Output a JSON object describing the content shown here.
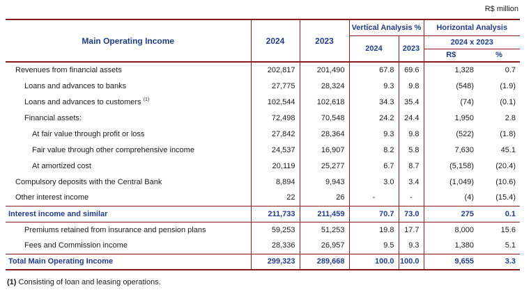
{
  "unit_label": "R$ million",
  "header": {
    "title": "Main Operating Income",
    "year1": "2024",
    "year2": "2023",
    "vertical": "Vertical Analysis %",
    "horizontal": "Horizontal Analysis",
    "va_year1": "2024",
    "va_year2": "2023",
    "comparison": "2024 x 2023",
    "rs": "R$",
    "pct": "%"
  },
  "rows": [
    {
      "label": "Revenues from financial assets",
      "sup": "",
      "y2024": "202,817",
      "y2023": "201,490",
      "va2024": "67.8",
      "va2023": "69.6",
      "ha_rs": "1,328",
      "ha_pct": "0.7"
    },
    {
      "label": "Loans and advances to banks",
      "sup": "",
      "y2024": "27,775",
      "y2023": "28,324",
      "va2024": "9.3",
      "va2023": "9.8",
      "ha_rs": "(548)",
      "ha_pct": "(1.9)"
    },
    {
      "label": "Loans and advances to customers",
      "sup": "(1)",
      "y2024": "102,544",
      "y2023": "102,618",
      "va2024": "34.3",
      "va2023": "35.4",
      "ha_rs": "(74)",
      "ha_pct": "(0.1)"
    },
    {
      "label": "Financial assets:",
      "sup": "",
      "y2024": "72,498",
      "y2023": "70,548",
      "va2024": "24.2",
      "va2023": "24.4",
      "ha_rs": "1,950",
      "ha_pct": "2.8"
    },
    {
      "label": "At fair value through profit or loss",
      "sup": "",
      "y2024": "27,842",
      "y2023": "28,364",
      "va2024": "9.3",
      "va2023": "9.8",
      "ha_rs": "(522)",
      "ha_pct": "(1.8)"
    },
    {
      "label": "Fair value through other comprehensive income",
      "sup": "",
      "y2024": "24,537",
      "y2023": "16,907",
      "va2024": "8.2",
      "va2023": "5.8",
      "ha_rs": "7,630",
      "ha_pct": "45.1"
    },
    {
      "label": "At amortized cost",
      "sup": "",
      "y2024": "20,119",
      "y2023": "25,277",
      "va2024": "6.7",
      "va2023": "8.7",
      "ha_rs": "(5,158)",
      "ha_pct": "(20.4)"
    },
    {
      "label": "Compulsory deposits with the Central Bank",
      "sup": "",
      "y2024": "8,894",
      "y2023": "9,943",
      "va2024": "3.0",
      "va2023": "3.4",
      "ha_rs": "(1,049)",
      "ha_pct": "(10.6)"
    },
    {
      "label": "Other interest income",
      "sup": "",
      "y2024": "22",
      "y2023": "26",
      "va2024": "-",
      "va2023": "-",
      "ha_rs": "(4)",
      "ha_pct": "(15.4)"
    },
    {
      "label": "Interest income and similar",
      "sup": "",
      "y2024": "211,733",
      "y2023": "211,459",
      "va2024": "70.7",
      "va2023": "73.0",
      "ha_rs": "275",
      "ha_pct": "0.1"
    },
    {
      "label": "Premiums retained from insurance and pension plans",
      "sup": "",
      "y2024": "59,253",
      "y2023": "51,253",
      "va2024": "19.8",
      "va2023": "17.7",
      "ha_rs": "8,000",
      "ha_pct": "15.6"
    },
    {
      "label": "Fees and Commission income",
      "sup": "",
      "y2024": "28,336",
      "y2023": "26,957",
      "va2024": "9.5",
      "va2023": "9.3",
      "ha_rs": "1,380",
      "ha_pct": "5.1"
    },
    {
      "label": "Total Main Operating Income",
      "sup": "",
      "y2024": "299,323",
      "y2023": "289,668",
      "va2024": "100.0",
      "va2023": "100.0",
      "ha_rs": "9,655",
      "ha_pct": "3.3"
    }
  ],
  "footnote": {
    "marker": "(1)",
    "text": "Consisting of loan and leasing operations."
  }
}
